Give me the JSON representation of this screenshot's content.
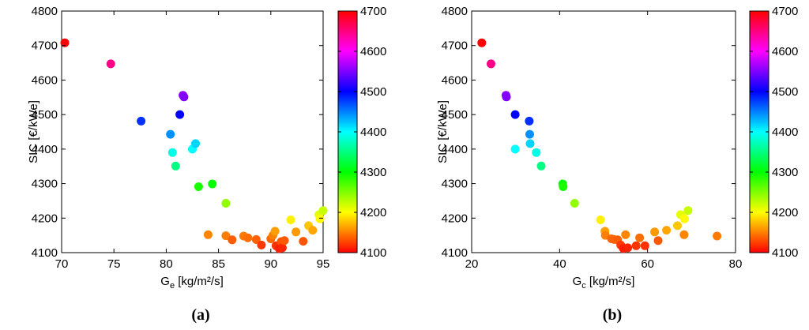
{
  "chart_data": [
    {
      "type": "scatter",
      "panel_label": "(a)",
      "xlabel_main": "G",
      "xlabel_sub": "e",
      "xlabel_rest": " [kg/m²/s]",
      "ylabel": "SIC [€/kWe]",
      "xlim": [
        70,
        95
      ],
      "ylim": [
        4100,
        4800
      ],
      "xticks": [
        70,
        75,
        80,
        85,
        90,
        95
      ],
      "yticks": [
        4100,
        4200,
        4300,
        4400,
        4500,
        4600,
        4700,
        4800
      ],
      "color_scale": {
        "min": 4100,
        "max": 4700,
        "ticks": [
          4100,
          4200,
          4300,
          4400,
          4500,
          4600,
          4700
        ],
        "colormap": "hsv"
      },
      "grid": false,
      "points": [
        {
          "x": 70.3,
          "y": 4708
        },
        {
          "x": 74.7,
          "y": 4647
        },
        {
          "x": 77.6,
          "y": 4481
        },
        {
          "x": 81.3,
          "y": 4500
        },
        {
          "x": 81.6,
          "y": 4556
        },
        {
          "x": 81.7,
          "y": 4551
        },
        {
          "x": 80.4,
          "y": 4443
        },
        {
          "x": 80.6,
          "y": 4390
        },
        {
          "x": 80.9,
          "y": 4351
        },
        {
          "x": 82.5,
          "y": 4400
        },
        {
          "x": 82.8,
          "y": 4416
        },
        {
          "x": 83.1,
          "y": 4291
        },
        {
          "x": 84.4,
          "y": 4299
        },
        {
          "x": 85.7,
          "y": 4243
        },
        {
          "x": 84.0,
          "y": 4152
        },
        {
          "x": 85.7,
          "y": 4149
        },
        {
          "x": 86.3,
          "y": 4137
        },
        {
          "x": 87.4,
          "y": 4148
        },
        {
          "x": 87.8,
          "y": 4143
        },
        {
          "x": 88.6,
          "y": 4138
        },
        {
          "x": 89.1,
          "y": 4122
        },
        {
          "x": 90.0,
          "y": 4140
        },
        {
          "x": 90.2,
          "y": 4150
        },
        {
          "x": 90.4,
          "y": 4162
        },
        {
          "x": 90.5,
          "y": 4120
        },
        {
          "x": 90.8,
          "y": 4112
        },
        {
          "x": 91.0,
          "y": 4132
        },
        {
          "x": 91.1,
          "y": 4114
        },
        {
          "x": 91.3,
          "y": 4135
        },
        {
          "x": 91.9,
          "y": 4195
        },
        {
          "x": 92.4,
          "y": 4160
        },
        {
          "x": 93.1,
          "y": 4133
        },
        {
          "x": 93.6,
          "y": 4178
        },
        {
          "x": 94.0,
          "y": 4165
        },
        {
          "x": 94.6,
          "y": 4210
        },
        {
          "x": 94.7,
          "y": 4198
        },
        {
          "x": 95.0,
          "y": 4222
        }
      ]
    },
    {
      "type": "scatter",
      "panel_label": "(b)",
      "xlabel_main": "G",
      "xlabel_sub": "c",
      "xlabel_rest": " [kg/m²/s]",
      "ylabel": "SIC [€/kWe]",
      "xlim": [
        20,
        80
      ],
      "ylim": [
        4100,
        4800
      ],
      "xticks": [
        20,
        40,
        60,
        80
      ],
      "yticks": [
        4100,
        4200,
        4300,
        4400,
        4500,
        4600,
        4700,
        4800
      ],
      "color_scale": {
        "min": 4100,
        "max": 4700,
        "ticks": [
          4100,
          4200,
          4300,
          4400,
          4500,
          4600,
          4700
        ],
        "colormap": "hsv"
      },
      "grid": false,
      "points": [
        {
          "x": 22.3,
          "y": 4708
        },
        {
          "x": 24.4,
          "y": 4647
        },
        {
          "x": 27.8,
          "y": 4556
        },
        {
          "x": 27.9,
          "y": 4551
        },
        {
          "x": 29.9,
          "y": 4500
        },
        {
          "x": 29.9,
          "y": 4400
        },
        {
          "x": 33.1,
          "y": 4481
        },
        {
          "x": 33.2,
          "y": 4443
        },
        {
          "x": 33.3,
          "y": 4416
        },
        {
          "x": 34.7,
          "y": 4390
        },
        {
          "x": 35.8,
          "y": 4351
        },
        {
          "x": 40.7,
          "y": 4299
        },
        {
          "x": 40.8,
          "y": 4291
        },
        {
          "x": 43.4,
          "y": 4243
        },
        {
          "x": 49.3,
          "y": 4195
        },
        {
          "x": 50.3,
          "y": 4162
        },
        {
          "x": 50.4,
          "y": 4150
        },
        {
          "x": 51.8,
          "y": 4140
        },
        {
          "x": 52.4,
          "y": 4138
        },
        {
          "x": 53.2,
          "y": 4137
        },
        {
          "x": 53.9,
          "y": 4122
        },
        {
          "x": 54.5,
          "y": 4112
        },
        {
          "x": 55.0,
          "y": 4152
        },
        {
          "x": 55.5,
          "y": 4114
        },
        {
          "x": 57.4,
          "y": 4120
        },
        {
          "x": 58.2,
          "y": 4143
        },
        {
          "x": 59.4,
          "y": 4120
        },
        {
          "x": 61.6,
          "y": 4160
        },
        {
          "x": 62.4,
          "y": 4135
        },
        {
          "x": 64.3,
          "y": 4165
        },
        {
          "x": 66.8,
          "y": 4178
        },
        {
          "x": 67.5,
          "y": 4210
        },
        {
          "x": 68.3,
          "y": 4152
        },
        {
          "x": 68.4,
          "y": 4198
        },
        {
          "x": 69.2,
          "y": 4222
        },
        {
          "x": 75.8,
          "y": 4148
        }
      ]
    }
  ]
}
